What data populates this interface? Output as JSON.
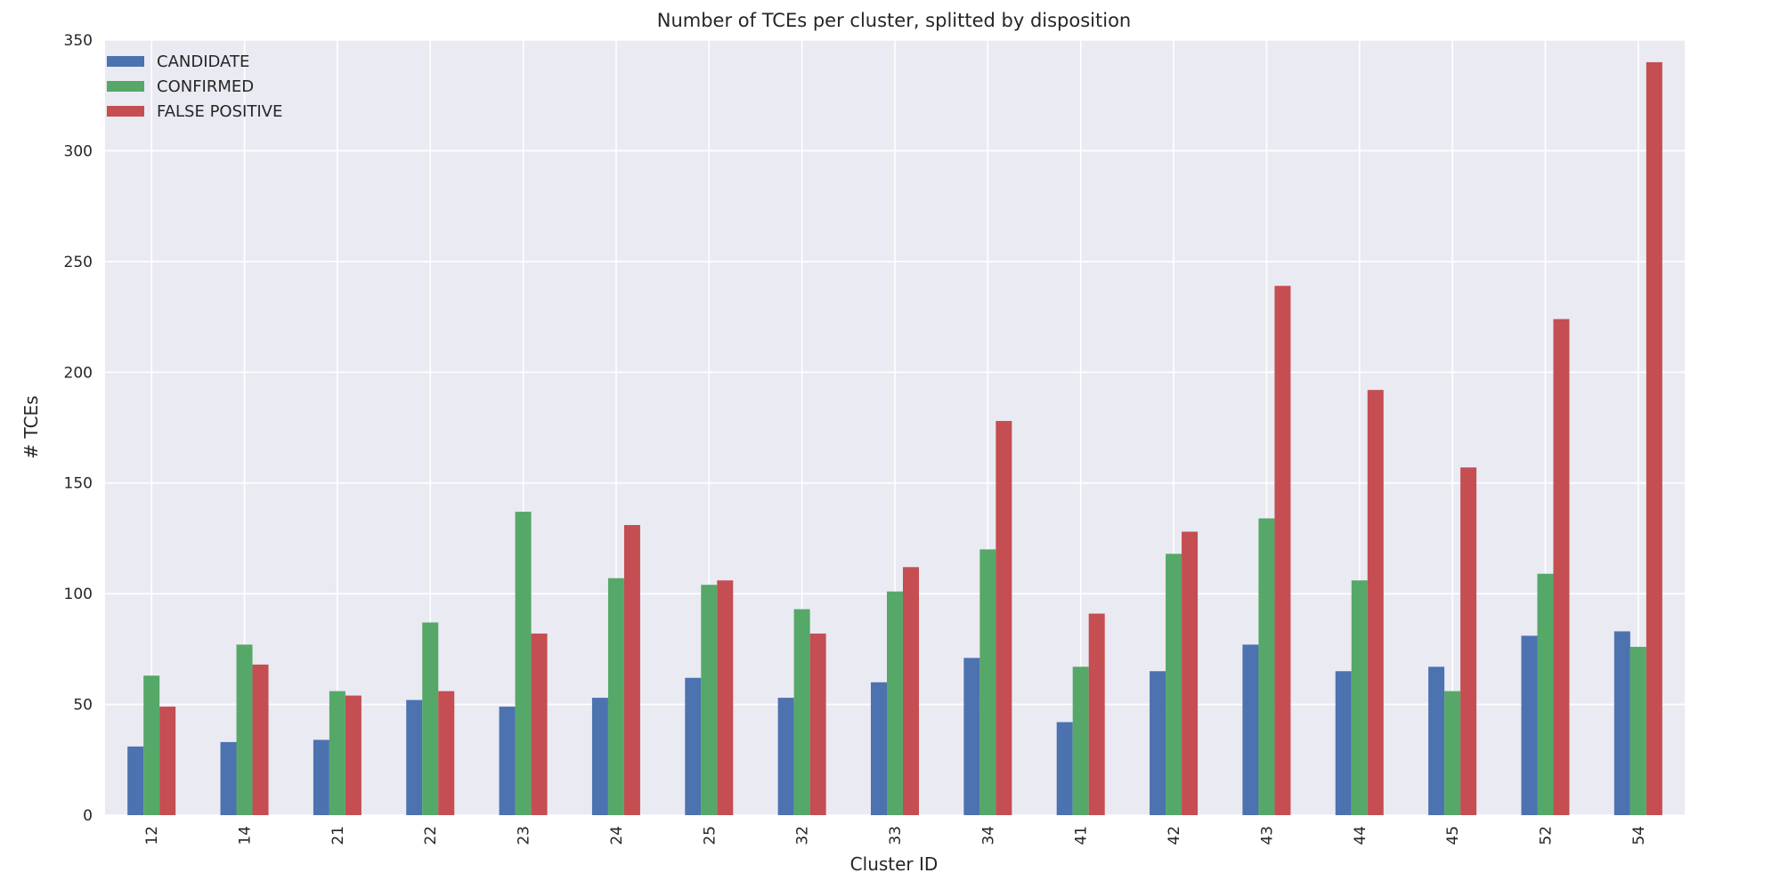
{
  "chart_data": {
    "type": "bar",
    "title": "Number of TCEs per cluster, splitted by disposition",
    "xlabel": "Cluster ID",
    "ylabel": "# TCEs",
    "ylim": [
      0,
      350
    ],
    "yticks": [
      "0",
      "50",
      "100",
      "150",
      "200",
      "250",
      "300",
      "350"
    ],
    "grid": true,
    "legend_position": "top-left",
    "categories": [
      "12",
      "14",
      "21",
      "22",
      "23",
      "24",
      "25",
      "32",
      "33",
      "34",
      "41",
      "42",
      "43",
      "44",
      "45",
      "52",
      "54"
    ],
    "series": [
      {
        "name": "CANDIDATE",
        "color": "#4c72b0",
        "values": [
          31,
          33,
          34,
          52,
          49,
          53,
          62,
          53,
          60,
          71,
          42,
          65,
          77,
          65,
          67,
          81,
          83
        ]
      },
      {
        "name": "CONFIRMED",
        "color": "#55a868",
        "values": [
          63,
          77,
          56,
          87,
          137,
          107,
          104,
          93,
          101,
          120,
          67,
          118,
          134,
          106,
          56,
          109,
          76
        ]
      },
      {
        "name": "FALSE POSITIVE",
        "color": "#c44e52",
        "values": [
          49,
          68,
          54,
          56,
          82,
          131,
          106,
          82,
          112,
          178,
          91,
          128,
          239,
          192,
          157,
          224,
          340
        ]
      }
    ]
  }
}
